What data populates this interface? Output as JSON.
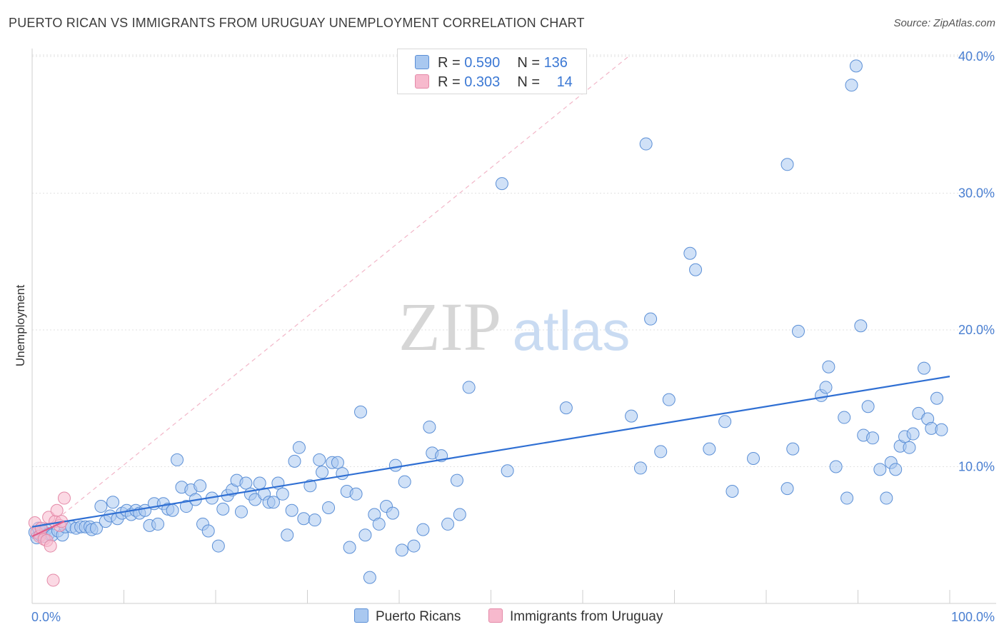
{
  "title": "PUERTO RICAN VS IMMIGRANTS FROM URUGUAY UNEMPLOYMENT CORRELATION CHART",
  "source": "Source: ZipAtlas.com",
  "watermark": {
    "zip": "ZIP",
    "atlas": "atlas"
  },
  "legend": {
    "rows": [
      {
        "r_label": "R = ",
        "r_value": "0.590",
        "n_label": "N = ",
        "n_value": "136",
        "color": "#a9c8f0",
        "border": "#5b8fd6"
      },
      {
        "r_label": "R = ",
        "r_value": "0.303",
        "n_label": "N = ",
        "n_value": "14",
        "color": "#f7b9cd",
        "border": "#e48aa8"
      }
    ]
  },
  "chart_data": {
    "type": "scatter",
    "title": "PUERTO RICAN VS IMMIGRANTS FROM URUGUAY UNEMPLOYMENT CORRELATION CHART",
    "xlabel": "",
    "ylabel": "Unemployment",
    "xlim": [
      0,
      100
    ],
    "ylim": [
      0,
      40
    ],
    "x_tick_labels": [
      "0.0%",
      "100.0%"
    ],
    "y_ticks": [
      10,
      20,
      30,
      40
    ],
    "y_tick_labels": [
      "10.0%",
      "20.0%",
      "30.0%",
      "40.0%"
    ],
    "grid": true,
    "legend_placement": "bottom-center",
    "series": [
      {
        "name": "Puerto Ricans",
        "color": "#a9c8f0",
        "stroke": "#5b8fd6",
        "points": [
          [
            0.3,
            5.2
          ],
          [
            0.5,
            4.8
          ],
          [
            0.7,
            5.5
          ],
          [
            0.9,
            5.0
          ],
          [
            1.1,
            5.3
          ],
          [
            1.3,
            4.9
          ],
          [
            1.5,
            5.4
          ],
          [
            1.8,
            5.1
          ],
          [
            2.2,
            5.0
          ],
          [
            2.8,
            5.3
          ],
          [
            3.3,
            5.0
          ],
          [
            3.6,
            5.6
          ],
          [
            4.3,
            5.6
          ],
          [
            4.8,
            5.5
          ],
          [
            5.3,
            5.6
          ],
          [
            5.8,
            5.6
          ],
          [
            6.3,
            5.6
          ],
          [
            6.5,
            5.4
          ],
          [
            7.0,
            5.5
          ],
          [
            7.5,
            7.1
          ],
          [
            8.0,
            6.0
          ],
          [
            8.5,
            6.4
          ],
          [
            8.8,
            7.4
          ],
          [
            9.3,
            6.2
          ],
          [
            9.8,
            6.6
          ],
          [
            10.3,
            6.8
          ],
          [
            10.8,
            6.5
          ],
          [
            11.3,
            6.8
          ],
          [
            11.7,
            6.6
          ],
          [
            12.3,
            6.8
          ],
          [
            12.8,
            5.7
          ],
          [
            13.3,
            7.3
          ],
          [
            13.7,
            5.8
          ],
          [
            14.3,
            7.3
          ],
          [
            14.8,
            6.9
          ],
          [
            15.3,
            6.8
          ],
          [
            15.8,
            10.5
          ],
          [
            16.3,
            8.5
          ],
          [
            16.8,
            7.1
          ],
          [
            17.3,
            8.3
          ],
          [
            17.8,
            7.6
          ],
          [
            18.3,
            8.6
          ],
          [
            18.6,
            5.8
          ],
          [
            19.2,
            5.3
          ],
          [
            19.6,
            7.7
          ],
          [
            20.3,
            4.2
          ],
          [
            20.8,
            6.9
          ],
          [
            21.3,
            7.9
          ],
          [
            21.8,
            8.3
          ],
          [
            22.3,
            9.0
          ],
          [
            22.8,
            6.7
          ],
          [
            23.3,
            8.8
          ],
          [
            23.8,
            8.0
          ],
          [
            24.3,
            7.6
          ],
          [
            24.8,
            8.8
          ],
          [
            25.3,
            8.0
          ],
          [
            25.8,
            7.4
          ],
          [
            26.3,
            7.4
          ],
          [
            26.8,
            8.8
          ],
          [
            27.3,
            8.0
          ],
          [
            27.8,
            5.0
          ],
          [
            28.3,
            6.8
          ],
          [
            28.6,
            10.4
          ],
          [
            29.1,
            11.4
          ],
          [
            29.6,
            6.2
          ],
          [
            30.3,
            8.6
          ],
          [
            30.8,
            6.1
          ],
          [
            31.3,
            10.5
          ],
          [
            31.6,
            9.6
          ],
          [
            32.3,
            7.0
          ],
          [
            32.7,
            10.3
          ],
          [
            33.3,
            10.3
          ],
          [
            33.8,
            9.5
          ],
          [
            34.3,
            8.2
          ],
          [
            34.6,
            4.1
          ],
          [
            35.3,
            8.0
          ],
          [
            35.8,
            14.0
          ],
          [
            36.3,
            5.0
          ],
          [
            36.8,
            1.9
          ],
          [
            37.3,
            6.5
          ],
          [
            37.8,
            5.8
          ],
          [
            38.6,
            7.1
          ],
          [
            39.3,
            6.6
          ],
          [
            39.6,
            10.1
          ],
          [
            40.3,
            3.9
          ],
          [
            40.6,
            8.9
          ],
          [
            41.6,
            4.2
          ],
          [
            42.6,
            5.4
          ],
          [
            43.3,
            12.9
          ],
          [
            43.6,
            11.0
          ],
          [
            44.6,
            10.8
          ],
          [
            45.3,
            5.8
          ],
          [
            46.3,
            9.0
          ],
          [
            46.6,
            6.5
          ],
          [
            47.6,
            15.8
          ],
          [
            51.2,
            30.7
          ],
          [
            51.8,
            9.7
          ],
          [
            58.2,
            14.3
          ],
          [
            65.3,
            13.7
          ],
          [
            66.3,
            9.9
          ],
          [
            66.9,
            33.6
          ],
          [
            67.4,
            20.8
          ],
          [
            68.5,
            11.1
          ],
          [
            69.4,
            14.9
          ],
          [
            71.7,
            25.6
          ],
          [
            72.3,
            24.4
          ],
          [
            73.8,
            11.3
          ],
          [
            75.5,
            13.3
          ],
          [
            76.3,
            8.2
          ],
          [
            78.6,
            10.6
          ],
          [
            82.3,
            32.1
          ],
          [
            82.3,
            8.4
          ],
          [
            82.9,
            11.3
          ],
          [
            83.5,
            19.9
          ],
          [
            86.0,
            15.2
          ],
          [
            86.5,
            15.8
          ],
          [
            86.8,
            17.3
          ],
          [
            87.6,
            10.0
          ],
          [
            88.5,
            13.6
          ],
          [
            88.8,
            7.7
          ],
          [
            89.3,
            37.9
          ],
          [
            89.8,
            39.3
          ],
          [
            90.3,
            20.3
          ],
          [
            90.6,
            12.3
          ],
          [
            91.1,
            14.4
          ],
          [
            91.6,
            12.1
          ],
          [
            92.4,
            9.8
          ],
          [
            93.1,
            7.7
          ],
          [
            93.6,
            10.3
          ],
          [
            94.1,
            9.8
          ],
          [
            94.6,
            11.5
          ],
          [
            95.1,
            12.2
          ],
          [
            95.6,
            11.4
          ],
          [
            96.0,
            12.4
          ],
          [
            96.6,
            13.9
          ],
          [
            97.2,
            17.2
          ],
          [
            97.6,
            13.5
          ],
          [
            98.0,
            12.8
          ],
          [
            98.6,
            15.0
          ],
          [
            99.1,
            12.7
          ]
        ],
        "trendline": {
          "x": [
            0,
            100
          ],
          "y": [
            5.6,
            16.6
          ]
        }
      },
      {
        "name": "Immigrants from Uruguay",
        "color": "#f7b9cd",
        "stroke": "#e48aa8",
        "points": [
          [
            0.3,
            5.9
          ],
          [
            0.5,
            5.2
          ],
          [
            0.8,
            4.9
          ],
          [
            1.0,
            5.5
          ],
          [
            1.3,
            4.7
          ],
          [
            1.6,
            4.6
          ],
          [
            1.8,
            6.3
          ],
          [
            2.0,
            4.2
          ],
          [
            2.3,
            1.7
          ],
          [
            2.5,
            6.0
          ],
          [
            2.7,
            6.8
          ],
          [
            3.0,
            5.7
          ],
          [
            3.2,
            6.0
          ],
          [
            3.5,
            7.7
          ]
        ],
        "trendline": {
          "x": [
            0,
            3.5
          ],
          "y": [
            4.9,
            6.0
          ]
        }
      }
    ],
    "reference_line": {
      "style": "dashed",
      "color": "#f2b6c8",
      "x": [
        0,
        65
      ],
      "y": [
        4.7,
        40
      ]
    }
  }
}
